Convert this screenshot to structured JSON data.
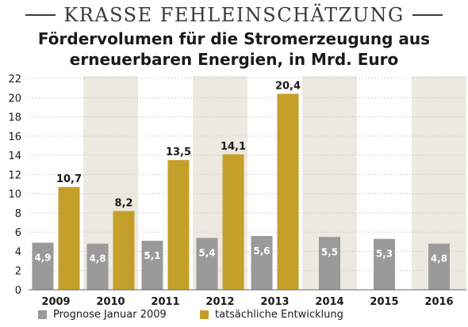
{
  "header": {
    "kicker": "KRASSE FEHLEINSCHÄTZUNG",
    "title_line1": "Fördervolumen für die Stromerzeugung aus",
    "title_line2": "erneuerbaren Energien, in Mrd. Euro"
  },
  "colors": {
    "prognose": "#9a9a9a",
    "tatsaechlich": "#c4a02a",
    "band": "#ede9e1",
    "grid": "#d4d4d4"
  },
  "legend": {
    "prognose_label": "Prognose Januar 2009",
    "tatsaechlich_label": "tatsächliche Entwicklung"
  },
  "chart_data": {
    "type": "bar",
    "title": "Fördervolumen für die Stromerzeugung aus erneuerbaren Energien, in Mrd. Euro",
    "categories": [
      "2009",
      "2010",
      "2011",
      "2012",
      "2013",
      "2014",
      "2015",
      "2016"
    ],
    "series": [
      {
        "name": "Prognose Januar 2009",
        "values": [
          4.9,
          4.8,
          5.1,
          5.4,
          5.6,
          5.5,
          5.3,
          4.8
        ],
        "labels": [
          "4,9",
          "4,8",
          "5,1",
          "5,4",
          "5,6",
          "5,5",
          "5,3",
          "4,8"
        ]
      },
      {
        "name": "tatsächliche Entwicklung",
        "values": [
          10.7,
          8.2,
          13.5,
          14.1,
          20.4,
          null,
          null,
          null
        ],
        "labels": [
          "10,7",
          "8,2",
          "13,5",
          "14,1",
          "20,4",
          "",
          "",
          ""
        ]
      }
    ],
    "ylim": [
      0,
      22
    ],
    "yticks": [
      0,
      2,
      4,
      6,
      8,
      10,
      12,
      14,
      16,
      18,
      20,
      22
    ],
    "grid": true,
    "legend_position": "bottom"
  }
}
